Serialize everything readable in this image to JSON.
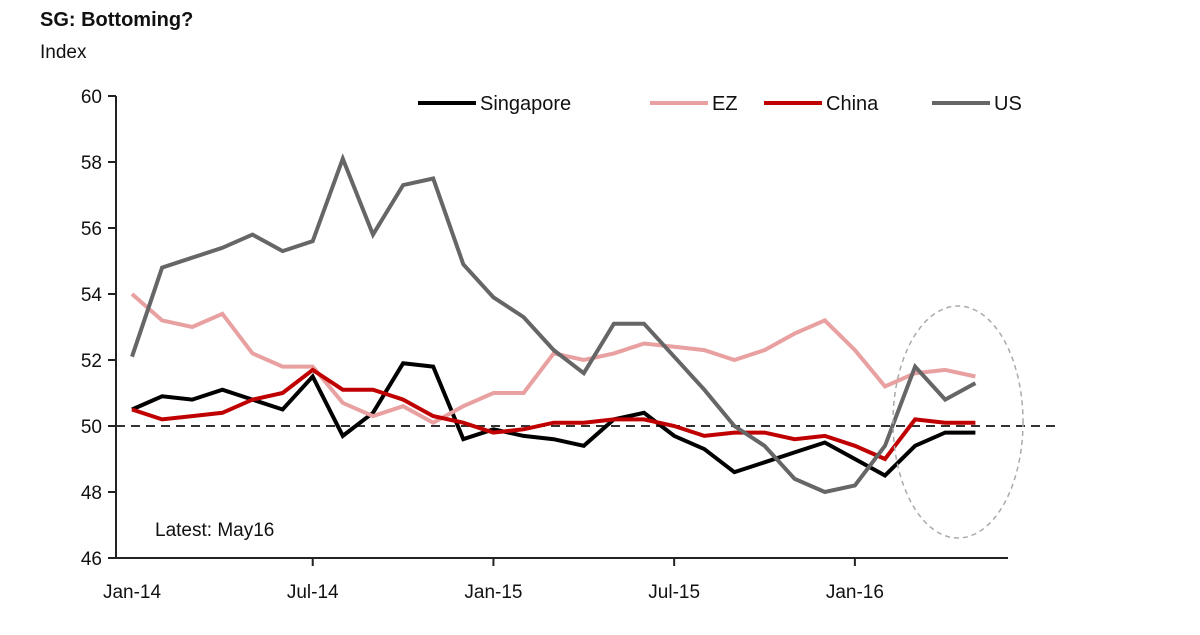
{
  "chart_data": {
    "type": "line",
    "title": "SG: Bottoming?",
    "ylabel": "Index",
    "xlabel": "",
    "ylim": [
      46,
      60
    ],
    "yticks": [
      46,
      48,
      50,
      52,
      54,
      56,
      58,
      60
    ],
    "x": [
      "Jan-14",
      "Feb-14",
      "Mar-14",
      "Apr-14",
      "May-14",
      "Jun-14",
      "Jul-14",
      "Aug-14",
      "Sep-14",
      "Oct-14",
      "Nov-14",
      "Dec-14",
      "Jan-15",
      "Feb-15",
      "Mar-15",
      "Apr-15",
      "May-15",
      "Jun-15",
      "Jul-15",
      "Aug-15",
      "Sep-15",
      "Oct-15",
      "Nov-15",
      "Dec-15",
      "Jan-16",
      "Feb-16",
      "Mar-16",
      "Apr-16",
      "May-16"
    ],
    "xtick_labels": [
      "Jan-14",
      "Jul-14",
      "Jan-15",
      "Jul-15",
      "Jan-16"
    ],
    "grid": false,
    "legend_position": "top",
    "reference_line": 50,
    "annotation": "Latest: May16",
    "highlight": "dashed ellipse around Feb-16 to May-16",
    "series": [
      {
        "name": "Singapore",
        "color": "#000000",
        "values": [
          50.5,
          50.9,
          50.8,
          51.1,
          50.8,
          50.5,
          51.5,
          49.7,
          50.4,
          51.9,
          51.8,
          49.6,
          49.9,
          49.7,
          49.6,
          49.4,
          50.2,
          50.4,
          49.7,
          49.3,
          48.6,
          48.9,
          49.2,
          49.5,
          49.0,
          48.5,
          49.4,
          49.8,
          49.8
        ]
      },
      {
        "name": "EZ",
        "color": "#e8a0a0",
        "values": [
          54.0,
          53.2,
          53.0,
          53.4,
          52.2,
          51.8,
          51.8,
          50.7,
          50.3,
          50.6,
          50.1,
          50.6,
          51.0,
          51.0,
          52.2,
          52.0,
          52.2,
          52.5,
          52.4,
          52.3,
          52.0,
          52.3,
          52.8,
          53.2,
          52.3,
          51.2,
          51.6,
          51.7,
          51.5
        ]
      },
      {
        "name": "China",
        "color": "#c00000",
        "values": [
          50.5,
          50.2,
          50.3,
          50.4,
          50.8,
          51.0,
          51.7,
          51.1,
          51.1,
          50.8,
          50.3,
          50.1,
          49.8,
          49.9,
          50.1,
          50.1,
          50.2,
          50.2,
          50.0,
          49.7,
          49.8,
          49.8,
          49.6,
          49.7,
          49.4,
          49.0,
          50.2,
          50.1,
          50.1
        ]
      },
      {
        "name": "US",
        "color": "#666666",
        "values": [
          52.1,
          54.8,
          55.1,
          55.4,
          55.8,
          55.3,
          55.6,
          58.1,
          55.8,
          57.3,
          57.5,
          54.9,
          53.9,
          53.3,
          52.3,
          51.6,
          53.1,
          53.1,
          52.1,
          51.1,
          50.0,
          49.4,
          48.4,
          48.0,
          48.2,
          49.4,
          51.8,
          50.8,
          51.3
        ]
      }
    ]
  }
}
